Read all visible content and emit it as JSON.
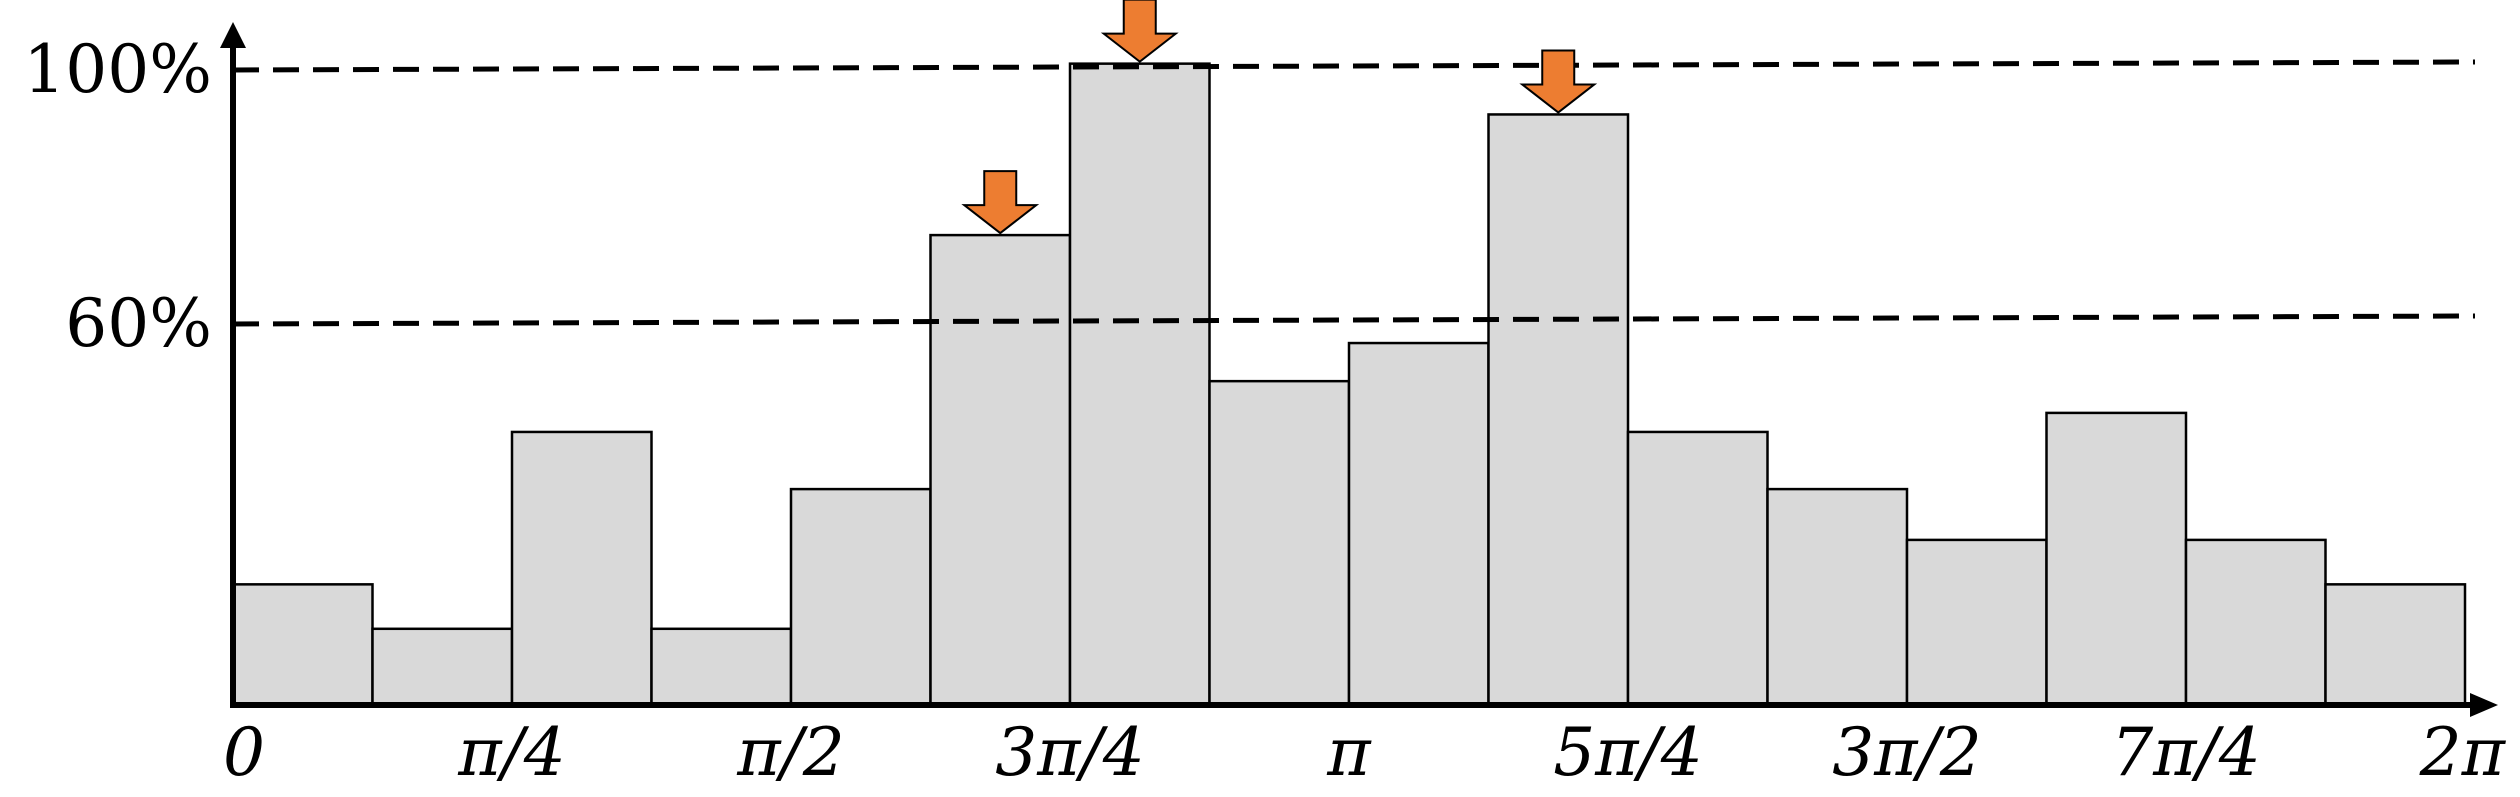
{
  "chart_data": {
    "type": "bar",
    "title": "",
    "xlabel": "",
    "ylabel": "",
    "ylim": [
      0,
      100
    ],
    "bin_count": 16,
    "values": [
      19,
      12,
      43,
      12,
      34,
      74,
      101,
      51,
      57,
      93,
      43,
      34,
      26,
      46,
      26,
      19
    ],
    "x_ticks": [
      "0",
      "π/4",
      "π/2",
      "3π/4",
      "π",
      "5π/4",
      "3π/2",
      "7π/4",
      "2π"
    ],
    "y_ticks": [
      {
        "value": 60,
        "label": "60%"
      },
      {
        "value": 100,
        "label": "100%"
      }
    ],
    "reference_lines": [
      {
        "value": 60,
        "style": "dashed"
      },
      {
        "value": 100,
        "style": "dashed"
      }
    ],
    "highlighted_bins": [
      5,
      6,
      9
    ],
    "highlight_color": "#ed7d31",
    "bar_color": "#d9d9d9",
    "grid": false,
    "legend": "none"
  }
}
